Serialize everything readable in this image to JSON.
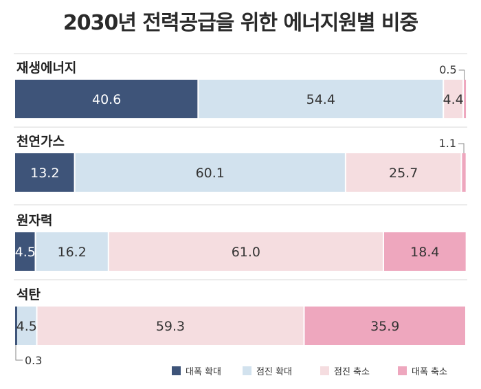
{
  "chart_data": {
    "type": "bar",
    "orientation": "horizontal",
    "stacked": true,
    "title": "2030년 전력공급을 위한 에너지원별 비중",
    "categories": [
      "재생에너지",
      "천연가스",
      "원자력",
      "석탄"
    ],
    "series": [
      {
        "name": "대폭 확대",
        "color": "#3e5479",
        "values": [
          40.6,
          13.2,
          4.5,
          0.3
        ]
      },
      {
        "name": "점진 확대",
        "color": "#d2e2ee",
        "values": [
          54.4,
          60.1,
          16.2,
          4.5
        ]
      },
      {
        "name": "점진 축소",
        "color": "#f5dde0",
        "values": [
          4.4,
          25.7,
          61.0,
          59.3
        ]
      },
      {
        "name": "대폭 축소",
        "color": "#eea7be",
        "values": [
          0.5,
          1.1,
          18.4,
          35.9
        ]
      }
    ],
    "value_labels": [
      [
        "40.6",
        "54.4",
        "4.4",
        "0.5"
      ],
      [
        "13.2",
        "60.1",
        "25.7",
        "1.1"
      ],
      [
        "4.5",
        "16.2",
        "61.0",
        "18.4"
      ],
      [
        "0.3",
        "4.5",
        "59.3",
        "35.9"
      ]
    ],
    "xlim": [
      0,
      100
    ],
    "legend_position": "bottom-right",
    "grid": false
  }
}
